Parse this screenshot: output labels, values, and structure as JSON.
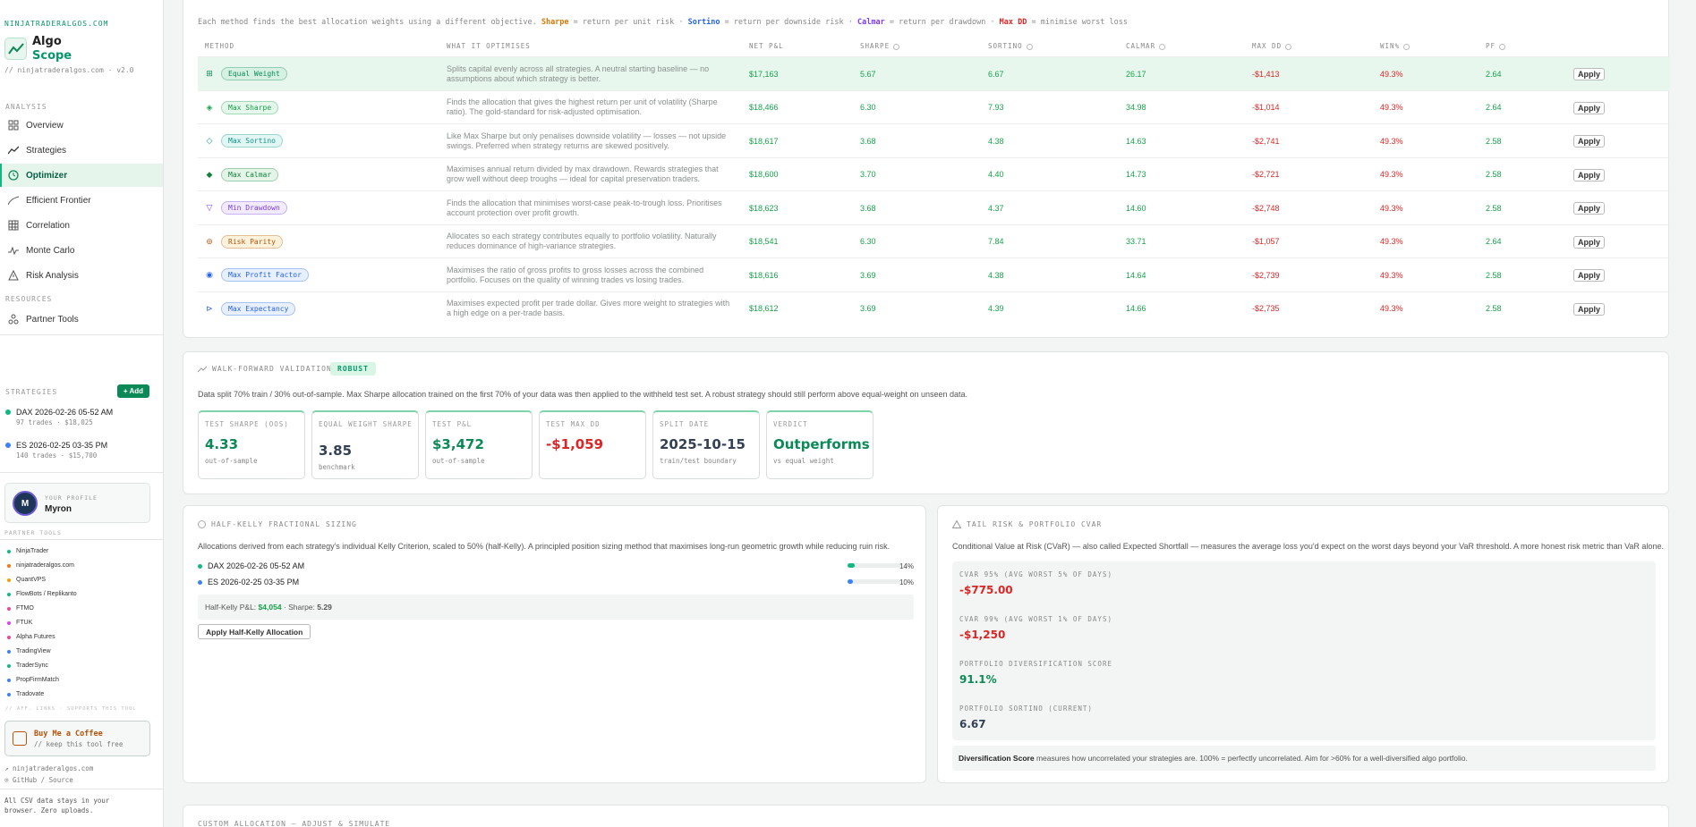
{
  "sidebar": {
    "site": "NINJATRADERALGOS.COM",
    "logo_line1": "Algo",
    "logo_line2": "Scope",
    "version": "// ninjatraderalgos.com · v2.0",
    "analysis_label": "ANALYSIS",
    "nav": [
      {
        "label": "Overview",
        "icon": "grid-icon"
      },
      {
        "label": "Strategies",
        "icon": "trend-icon"
      },
      {
        "label": "Optimizer",
        "icon": "clock-icon"
      },
      {
        "label": "Efficient Frontier",
        "icon": "curve-icon"
      },
      {
        "label": "Correlation",
        "icon": "table-icon"
      },
      {
        "label": "Monte Carlo",
        "icon": "pulse-icon"
      },
      {
        "label": "Risk Analysis",
        "icon": "warning-icon"
      }
    ],
    "resources_label": "RESOURCES",
    "partner_tools_nav": "Partner Tools",
    "strategies_label": "STRATEGIES",
    "add_label": "+ Add",
    "strategies": [
      {
        "name": "DAX 2026-02-26 05-52 AM",
        "sub": "97 trades · $18,025",
        "color": "#10b981"
      },
      {
        "name": "ES 2026-02-25 03-35 PM",
        "sub": "140 trades · $15,700",
        "color": "#3b82f6"
      }
    ],
    "profile_label": "YOUR PROFILE",
    "profile_name": "Myron",
    "profile_initial": "M",
    "partner_tools_label": "PARTNER TOOLS",
    "partner_tools": [
      {
        "name": "NinjaTrader",
        "color": "#10b981"
      },
      {
        "name": "ninjatraderalgos.com",
        "color": "#f97316"
      },
      {
        "name": "QuantVPS",
        "color": "#f59e0b"
      },
      {
        "name": "FlowBots / Replikanto",
        "color": "#10b981"
      },
      {
        "name": "FTMO",
        "color": "#ec4899"
      },
      {
        "name": "FTUK",
        "color": "#d946ef"
      },
      {
        "name": "Alpha Futures",
        "color": "#ec4899"
      },
      {
        "name": "TradingView",
        "color": "#3b82f6"
      },
      {
        "name": "TraderSync",
        "color": "#10b981"
      },
      {
        "name": "PropFirmMatch",
        "color": "#3b82f6"
      },
      {
        "name": "Tradovate",
        "color": "#3b82f6"
      }
    ],
    "partner_footer": "// AFF. LINKS · SUPPORTS THIS TOOL",
    "coffee_title": "Buy Me a Coffee",
    "coffee_sub": "// keep this tool free",
    "foot_link1": "↗ ninjatraderalgos.com",
    "foot_link2": "⊙ GitHub / Source",
    "foot_note": "All CSV data stays in your browser. Zero uploads."
  },
  "optimizer": {
    "intro_prefix": "Each method finds the best allocation weights using a different objective.",
    "intro_sharpe": "Sharpe",
    "intro_sharpe_desc": "= return per unit risk ·",
    "intro_sortino": "Sortino",
    "intro_sortino_desc": "= return per downside risk ·",
    "intro_calmar": "Calmar",
    "intro_calmar_desc": "= return per drawdown ·",
    "intro_maxdd": "Max DD",
    "intro_maxdd_desc": "= minimise worst loss",
    "headers": {
      "method": "METHOD",
      "what": "WHAT IT OPTIMISES",
      "pnl": "NET P&L",
      "sharpe": "SHARPE",
      "sortino": "SORTINO",
      "calmar": "CALMAR",
      "maxdd": "MAX DD",
      "win": "WIN%",
      "pf": "PF"
    },
    "apply_label": "Apply",
    "rows": [
      {
        "icon": "⊞",
        "name": "Equal Weight",
        "desc": "Splits capital evenly across all strategies. A neutral starting baseline — no assumptions about which strategy is better.",
        "pnl": "$17,163",
        "sharpe": "5.67",
        "sortino": "6.67",
        "calmar": "26.17",
        "maxdd": "-$1,413",
        "win": "49.3%",
        "pf": "2.64",
        "color": "#0b8a57",
        "bg": "#d6f0e2"
      },
      {
        "icon": "◈",
        "name": "Max Sharpe",
        "desc": "Finds the allocation that gives the highest return per unit of volatility (Sharpe ratio). The gold-standard for risk-adjusted optimisation.",
        "pnl": "$18,466",
        "sharpe": "6.30",
        "sortino": "7.93",
        "calmar": "34.98",
        "maxdd": "-$1,014",
        "win": "49.3%",
        "pf": "2.64",
        "color": "#16a34a",
        "bg": "#e6f7ec"
      },
      {
        "icon": "◇",
        "name": "Max Sortino",
        "desc": "Like Max Sharpe but only penalises downside volatility — losses — not upside swings. Preferred when strategy returns are skewed positively.",
        "pnl": "$18,617",
        "sharpe": "3.68",
        "sortino": "4.38",
        "calmar": "14.63",
        "maxdd": "-$2,741",
        "win": "49.3%",
        "pf": "2.58",
        "color": "#0d9488",
        "bg": "#e2f6f3"
      },
      {
        "icon": "◆",
        "name": "Max Calmar",
        "desc": "Maximises annual return divided by max drawdown. Rewards strategies that grow well without deep troughs — ideal for capital preservation traders.",
        "pnl": "$18,600",
        "sharpe": "3.70",
        "sortino": "4.40",
        "calmar": "14.73",
        "maxdd": "-$2,721",
        "win": "49.3%",
        "pf": "2.58",
        "color": "#15803d",
        "bg": "#e4f5e8"
      },
      {
        "icon": "▽",
        "name": "Min Drawdown",
        "desc": "Finds the allocation that minimises worst-case peak-to-trough loss. Prioritises account protection over profit growth.",
        "pnl": "$18,623",
        "sharpe": "3.68",
        "sortino": "4.37",
        "calmar": "14.60",
        "maxdd": "-$2,748",
        "win": "49.3%",
        "pf": "2.58",
        "color": "#7c3aed",
        "bg": "#f1ebfd"
      },
      {
        "icon": "⊚",
        "name": "Risk Parity",
        "desc": "Allocates so each strategy contributes equally to portfolio volatility. Naturally reduces dominance of high-variance strategies.",
        "pnl": "$18,541",
        "sharpe": "6.30",
        "sortino": "7.84",
        "calmar": "33.71",
        "maxdd": "-$1,057",
        "win": "49.3%",
        "pf": "2.64",
        "color": "#b45309",
        "bg": "#fdf3dc"
      },
      {
        "icon": "◉",
        "name": "Max Profit Factor",
        "desc": "Maximises the ratio of gross profits to gross losses across the combined portfolio. Focuses on the quality of winning trades vs losing trades.",
        "pnl": "$18,616",
        "sharpe": "3.69",
        "sortino": "4.38",
        "calmar": "14.64",
        "maxdd": "-$2,739",
        "win": "49.3%",
        "pf": "2.58",
        "color": "#2563eb",
        "bg": "#e8f0fd"
      },
      {
        "icon": "⊳",
        "name": "Max Expectancy",
        "desc": "Maximises expected profit per trade dollar. Gives more weight to strategies with a high edge on a per-trade basis.",
        "pnl": "$18,612",
        "sharpe": "3.69",
        "sortino": "4.39",
        "calmar": "14.66",
        "maxdd": "-$2,735",
        "win": "49.3%",
        "pf": "2.58",
        "color": "#2563eb",
        "bg": "#e8f0fd"
      }
    ]
  },
  "walk_forward": {
    "title": "WALK-FORWARD VALIDATION",
    "badge": "ROBUST",
    "desc": "Data split 70% train / 30% out-of-sample. Max Sharpe allocation trained on the first 70% of your data was then applied to the withheld test set. A robust strategy should still perform above equal-weight on unseen data.",
    "metrics": [
      {
        "label": "TEST SHARPE (OOS)",
        "value": "4.33",
        "sub": "out-of-sample",
        "color": "#0b8a57"
      },
      {
        "label": "EQUAL WEIGHT SHARPE",
        "value": "3.85",
        "sub": "benchmark",
        "color": "#334155"
      },
      {
        "label": "TEST P&L",
        "value": "$3,472",
        "sub": "out-of-sample",
        "color": "#0b8a57"
      },
      {
        "label": "TEST MAX DD",
        "value": "-$1,059",
        "sub": "",
        "color": "#dc2626"
      },
      {
        "label": "SPLIT DATE",
        "value": "2025-10-15",
        "sub": "train/test boundary",
        "color": "#334155"
      },
      {
        "label": "VERDICT",
        "value": "Outperforms",
        "sub": "vs equal weight",
        "color": "#0b8a57"
      }
    ]
  },
  "kelly": {
    "title": "HALF-KELLY FRACTIONAL SIZING",
    "desc": "Allocations derived from each strategy's individual Kelly Criterion, scaled to 50% (half-Kelly). A principled position sizing method that maximises long-run geometric growth while reducing ruin risk.",
    "rows": [
      {
        "name": "DAX 2026-02-26 05-52 AM",
        "pct": "14%",
        "fill": 0.14,
        "color": "#10b981"
      },
      {
        "name": "ES 2026-02-25 03-35 PM",
        "pct": "10%",
        "fill": 0.1,
        "color": "#3b82f6"
      }
    ],
    "pnl_label": "Half-Kelly P&L:",
    "pnl_value": "$4,054",
    "sharpe_label": "· Sharpe:",
    "sharpe_value": "5.29",
    "apply_label": "Apply Half-Kelly Allocation"
  },
  "cvar": {
    "title": "TAIL RISK & PORTFOLIO CVAR",
    "desc": "Conditional Value at Risk (CVaR) — also called Expected Shortfall — measures the average loss you'd expect on the worst days beyond your VaR threshold. A more honest risk metric than VaR alone.",
    "items": [
      {
        "label": "CVAR 95% (AVG WORST 5% OF DAYS)",
        "value": "-$775.00",
        "color": "#dc2626"
      },
      {
        "label": "CVAR 99% (AVG WORST 1% OF DAYS)",
        "value": "-$1,250",
        "color": "#dc2626"
      },
      {
        "label": "PORTFOLIO DIVERSIFICATION SCORE",
        "value": "91.1%",
        "color": "#0b8a57"
      },
      {
        "label": "PORTFOLIO SORTINO (CURRENT)",
        "value": "6.67",
        "color": "#334155"
      }
    ],
    "foot_bold": "Diversification Score",
    "foot_text": "measures how uncorrelated your strategies are. 100% = perfectly uncorrelated. Aim for >60% for a well-diversified algo portfolio."
  },
  "custom": {
    "title": "CUSTOM ALLOCATION — ADJUST & SIMULATE"
  }
}
